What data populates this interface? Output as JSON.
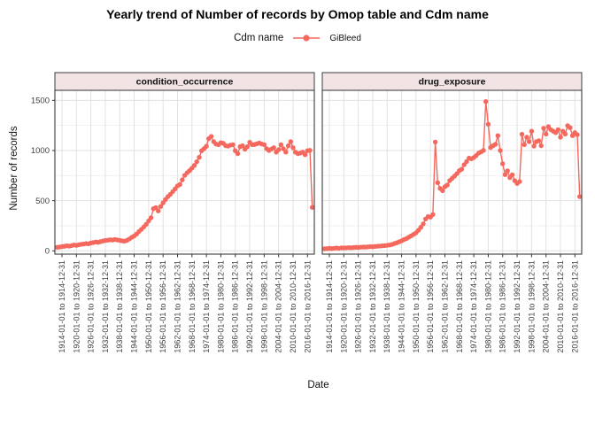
{
  "title": "Yearly trend of Number of records by Omop table and Cdm name",
  "legend": {
    "title": "Cdm name",
    "position": "top",
    "items": [
      {
        "label": "GiBleed",
        "color": "#F4685E"
      }
    ]
  },
  "axes": {
    "x_title": "Date",
    "y_title": "Number of records",
    "y_ticks": [
      0,
      500,
      1000,
      1500
    ],
    "y_tick_labels": [
      "0",
      "500",
      "1000",
      "1500"
    ],
    "y_minor": [
      250,
      750,
      1250
    ],
    "x_tick_years": [
      1914,
      1920,
      1926,
      1932,
      1938,
      1944,
      1950,
      1956,
      1962,
      1968,
      1974,
      1980,
      1986,
      1992,
      1998,
      2004,
      2010,
      2016
    ],
    "x_tick_labels": [
      "1914-01-01 to 1914-12-31",
      "1920-01-01 to 1920-12-31",
      "1926-01-01 to 1926-12-31",
      "1932-01-01 to 1932-12-31",
      "1938-01-01 to 1938-12-31",
      "1944-01-01 to 1944-12-31",
      "1950-01-01 to 1950-12-31",
      "1956-01-01 to 1956-12-31",
      "1962-01-01 to 1962-12-31",
      "1968-01-01 to 1968-12-31",
      "1974-01-01 to 1974-12-31",
      "1980-01-01 to 1980-12-31",
      "1986-01-01 to 1986-12-31",
      "1992-01-01 to 1992-12-31",
      "1998-01-01 to 1998-12-31",
      "2004-01-01 to 2004-12-31",
      "2010-01-01 to 2010-12-31",
      "2016-01-01 to 2016-12-31"
    ]
  },
  "chart_data": {
    "type": "line",
    "x_start": 1912,
    "x_step": 1,
    "x_domain": [
      1911.06,
      2018.83
    ],
    "y_domain": [
      -32.6,
      1600
    ],
    "ylim": [
      0,
      1500
    ],
    "grid": true,
    "legend_position": "top",
    "colors": {
      "series": "#F4685E",
      "strip_bg": "#F2E4E4",
      "border": "#3C3C3C",
      "grid_major": "#E1E1E1",
      "grid_minor": "#EEEEEE"
    },
    "facets": [
      {
        "label": "condition_occurrence",
        "series": [
          {
            "name": "GiBleed",
            "color": "#F4685E",
            "values": [
              35,
              38,
              42,
              45,
              50,
              47,
              52,
              58,
              55,
              60,
              65,
              68,
              72,
              70,
              78,
              82,
              88,
              85,
              92,
              98,
              103,
              106,
              110,
              108,
              114,
              109,
              104,
              99,
              97,
              104,
              118,
              135,
              148,
              168,
              192,
              214,
              238,
              265,
              298,
              330,
              420,
              432,
              398,
              442,
              478,
              512,
              540,
              562,
              590,
              618,
              648,
              662,
              708,
              752,
              778,
              800,
              824,
              852,
              888,
              932,
              998,
              1018,
              1042,
              1118,
              1140,
              1088,
              1064,
              1058,
              1078,
              1072,
              1048,
              1044,
              1054,
              1058,
              998,
              968,
              1038,
              1048,
              1012,
              1038,
              1082,
              1058,
              1060,
              1068,
              1074,
              1064,
              1058,
              1018,
              1000,
              1014,
              1028,
              984,
              1008,
              1058,
              1018,
              984,
              1048,
              1088,
              1028,
              984,
              968,
              974,
              984,
              958,
              998,
              1002,
              433
            ]
          }
        ]
      },
      {
        "label": "drug_exposure",
        "series": [
          {
            "name": "GiBleed",
            "color": "#F4685E",
            "values": [
              20,
              22,
              25,
              23,
              26,
              28,
              26,
              30,
              28,
              30,
              32,
              31,
              33,
              35,
              34,
              36,
              38,
              37,
              40,
              42,
              41,
              44,
              46,
              48,
              50,
              52,
              55,
              58,
              64,
              72,
              80,
              90,
              100,
              112,
              122,
              136,
              150,
              164,
              180,
              205,
              235,
              268,
              318,
              342,
              336,
              362,
              1085,
              680,
              622,
              600,
              640,
              656,
              700,
              722,
              746,
              770,
              800,
              814,
              858,
              890,
              924,
              918,
              930,
              950,
              974,
              986,
              1002,
              1488,
              1262,
              1030,
              1048,
              1062,
              1148,
              1000,
              868,
              760,
              798,
              730,
              758,
              700,
              672,
              690,
              1162,
              1058,
              1132,
              1088,
              1192,
              1044,
              1088,
              1098,
              1048,
              1222,
              1164,
              1238,
              1208,
              1192,
              1178,
              1208,
              1132,
              1192,
              1164,
              1248,
              1228,
              1148,
              1178,
              1158,
              540
            ]
          }
        ]
      }
    ]
  }
}
